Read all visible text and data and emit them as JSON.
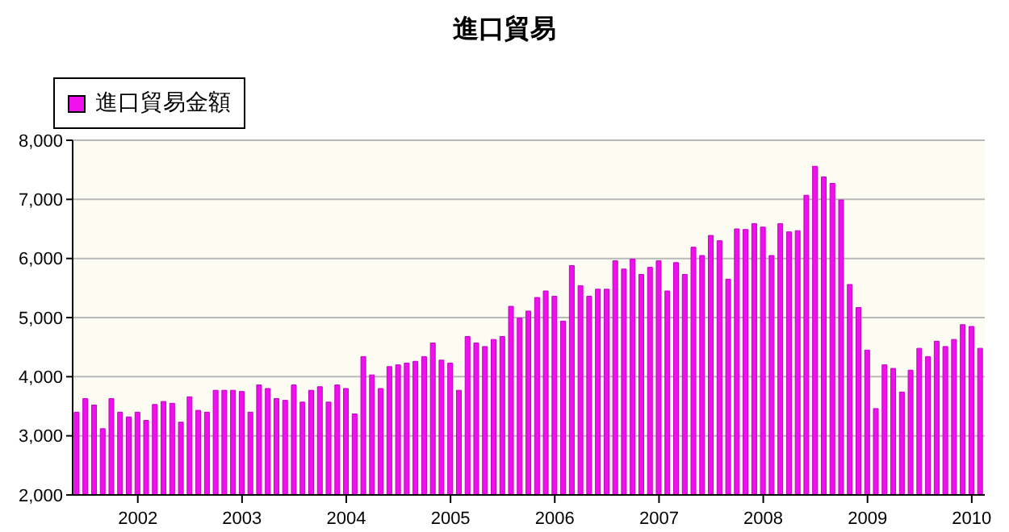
{
  "chart_data": {
    "type": "bar",
    "title": "進口貿易",
    "categories": [
      null,
      null,
      null,
      null,
      null,
      null,
      null,
      "2002",
      null,
      null,
      null,
      null,
      null,
      null,
      null,
      null,
      null,
      null,
      null,
      "2003",
      null,
      null,
      null,
      null,
      null,
      null,
      null,
      null,
      null,
      null,
      null,
      "2004",
      null,
      null,
      null,
      null,
      null,
      null,
      null,
      null,
      null,
      null,
      null,
      "2005",
      null,
      null,
      null,
      null,
      null,
      null,
      null,
      null,
      null,
      null,
      null,
      "2006",
      null,
      null,
      null,
      null,
      null,
      null,
      null,
      null,
      null,
      null,
      null,
      "2007",
      null,
      null,
      null,
      null,
      null,
      null,
      null,
      null,
      null,
      null,
      null,
      "2008",
      null,
      null,
      null,
      null,
      null,
      null,
      null,
      null,
      null,
      null,
      null,
      "2009",
      null,
      null,
      null,
      null,
      null,
      null,
      null,
      null,
      null,
      null,
      null,
      "2010",
      null
    ],
    "series": [
      {
        "name": "進口貿易金額",
        "color": "#ee11ee",
        "values": [
          3400,
          3630,
          3520,
          3120,
          3630,
          3400,
          3320,
          3400,
          3260,
          3530,
          3580,
          3550,
          3230,
          3660,
          3430,
          3400,
          3770,
          3770,
          3770,
          3750,
          3400,
          3860,
          3800,
          3630,
          3600,
          3860,
          3570,
          3770,
          3830,
          3570,
          3860,
          3800,
          3370,
          4340,
          4030,
          3800,
          4170,
          4200,
          4230,
          4260,
          4340,
          4570,
          4280,
          4230,
          3770,
          4680,
          4570,
          4510,
          4630,
          4680,
          5190,
          4990,
          5110,
          5340,
          5450,
          5360,
          4940,
          5880,
          5540,
          5360,
          5480,
          5480,
          5960,
          5820,
          5990,
          5730,
          5850,
          5960,
          5450,
          5930,
          5730,
          6190,
          6050,
          6390,
          6300,
          5650,
          6500,
          6490,
          6590,
          6530,
          6050,
          6590,
          6450,
          6470,
          7070,
          7560,
          7380,
          7270,
          6990,
          5560,
          5170,
          4450,
          3460,
          4200,
          4140,
          3740,
          4110,
          4480,
          4340,
          4600,
          4510,
          4630,
          4880,
          4850,
          4480
        ]
      }
    ],
    "ylim": [
      2000,
      8000
    ],
    "yticks": [
      {
        "value": 2000,
        "label": "2,000"
      },
      {
        "value": 3000,
        "label": "3,000"
      },
      {
        "value": 4000,
        "label": "4,000"
      },
      {
        "value": 5000,
        "label": "5,000"
      },
      {
        "value": 6000,
        "label": "6,000"
      },
      {
        "value": 7000,
        "label": "7,000"
      },
      {
        "value": 8000,
        "label": "8,000"
      }
    ],
    "grid": "y",
    "legend": "top left"
  }
}
